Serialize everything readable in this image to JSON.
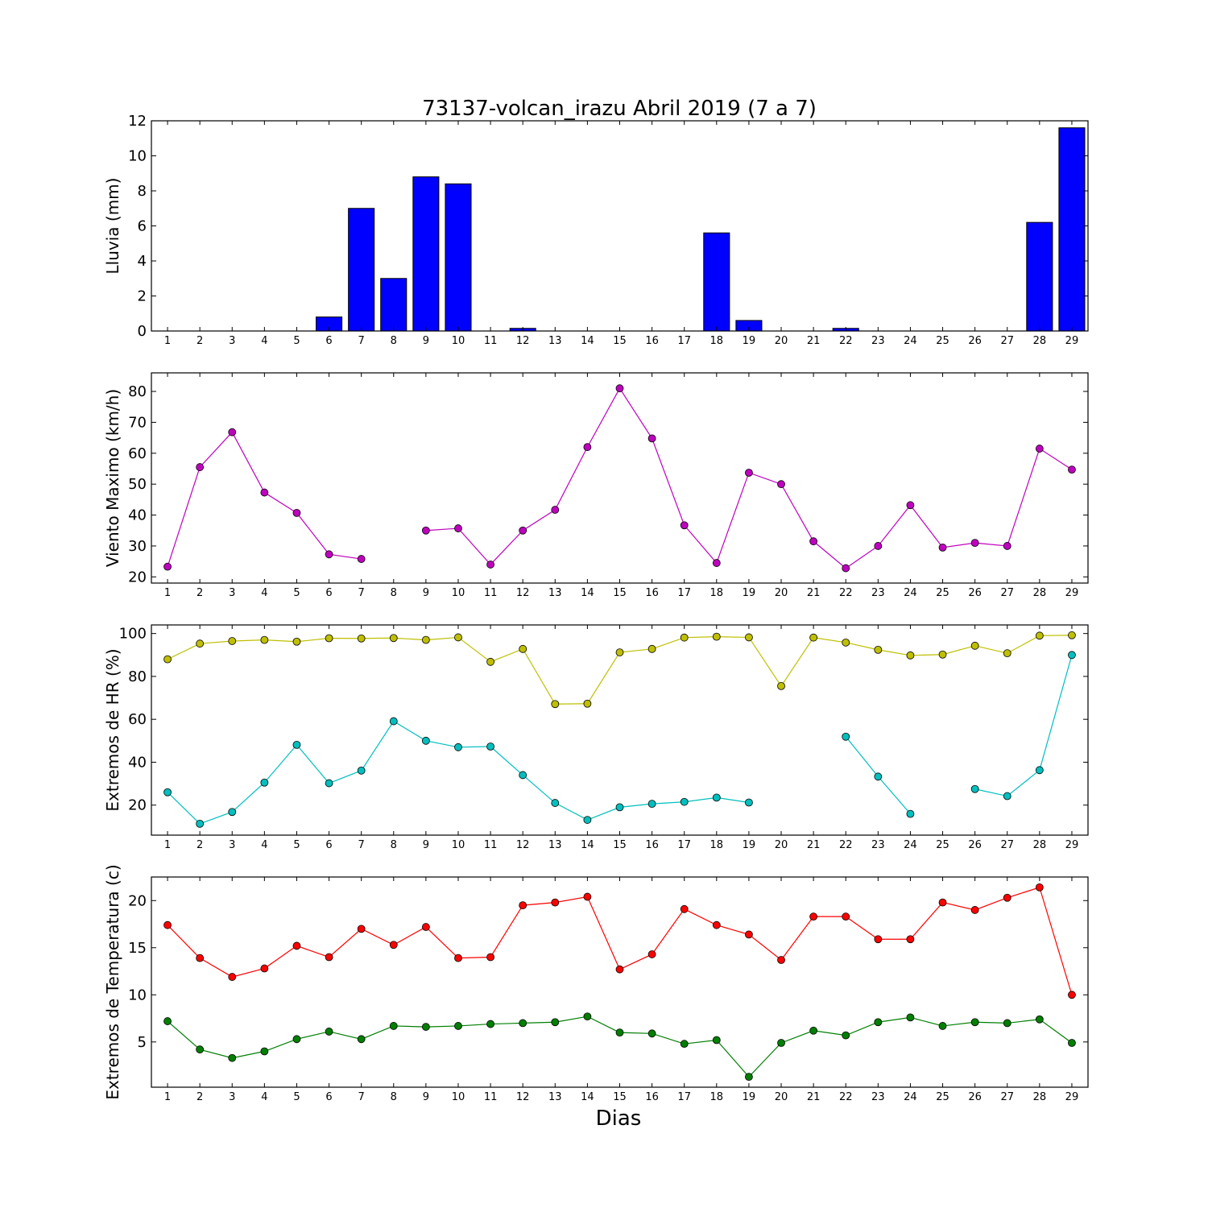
{
  "figure": {
    "title": "73137-volcan_irazu Abril 2019  (7 a 7)",
    "xlabel": "Dias"
  },
  "chart_data": [
    {
      "type": "bar",
      "ylabel": "Lluvia (mm)",
      "ylim": [
        0,
        12
      ],
      "yticks": [
        0,
        2,
        4,
        6,
        8,
        10,
        12
      ],
      "categories": [
        1,
        2,
        3,
        4,
        5,
        6,
        7,
        8,
        9,
        10,
        11,
        12,
        13,
        14,
        15,
        16,
        17,
        18,
        19,
        20,
        21,
        22,
        23,
        24,
        25,
        26,
        27,
        28,
        29
      ],
      "series": [
        {
          "color": "#0000ff",
          "values": [
            0,
            0,
            0,
            0,
            0,
            0.8,
            7.0,
            3.0,
            8.8,
            8.4,
            0,
            0.15,
            0,
            0,
            0,
            0,
            0,
            5.6,
            0.6,
            0,
            0,
            0.15,
            0,
            0,
            0,
            0,
            0,
            6.2,
            11.6
          ]
        }
      ]
    },
    {
      "type": "line",
      "ylabel": "Viento Maximo (km/h)",
      "ylim": [
        18,
        86
      ],
      "yticks": [
        20,
        30,
        40,
        50,
        60,
        70,
        80
      ],
      "categories": [
        1,
        2,
        3,
        4,
        5,
        6,
        7,
        8,
        9,
        10,
        11,
        12,
        13,
        14,
        15,
        16,
        17,
        18,
        19,
        20,
        21,
        22,
        23,
        24,
        25,
        26,
        27,
        28,
        29
      ],
      "series": [
        {
          "color": "#bf00bf",
          "values": [
            23.3,
            55.5,
            66.8,
            47.3,
            40.7,
            27.3,
            25.8,
            null,
            35.0,
            35.7,
            24.0,
            35.0,
            41.7,
            62.0,
            81.0,
            64.8,
            36.7,
            24.5,
            53.7,
            50.0,
            31.5,
            22.8,
            30.0,
            43.2,
            29.5,
            31.0,
            30.0,
            61.5,
            54.7
          ]
        }
      ]
    },
    {
      "type": "line",
      "ylabel": "Extremos de HR (%)",
      "ylim": [
        6,
        104
      ],
      "yticks": [
        20,
        40,
        60,
        80,
        100
      ],
      "categories": [
        1,
        2,
        3,
        4,
        5,
        6,
        7,
        8,
        9,
        10,
        11,
        12,
        13,
        14,
        15,
        16,
        17,
        18,
        19,
        20,
        21,
        22,
        23,
        24,
        25,
        26,
        27,
        28,
        29
      ],
      "series": [
        {
          "color": "#bfbf00",
          "values": [
            88,
            95.3,
            96.5,
            97,
            96.2,
            97.8,
            97.7,
            97.9,
            97,
            98.2,
            86.8,
            92.8,
            67.1,
            67.3,
            91.2,
            92.8,
            98.1,
            98.5,
            98.2,
            75.5,
            98.1,
            95.8,
            92.4,
            89.8,
            90.2,
            94.3,
            90.8,
            99.0,
            99.2
          ]
        },
        {
          "color": "#00bfbf",
          "values": [
            26,
            11.3,
            16.8,
            30.5,
            48.1,
            30.2,
            36.1,
            59.1,
            50,
            47,
            47.3,
            34,
            21,
            13.1,
            19,
            20.6,
            21.5,
            23.5,
            21.2,
            null,
            null,
            51.9,
            33.3,
            15.9,
            null,
            27.5,
            24.2,
            36.3,
            90
          ]
        }
      ]
    },
    {
      "type": "line",
      "ylabel": "Extremos de Temperatura (c)",
      "ylim": [
        0.2,
        22.5
      ],
      "yticks": [
        5,
        10,
        15,
        20
      ],
      "categories": [
        1,
        2,
        3,
        4,
        5,
        6,
        7,
        8,
        9,
        10,
        11,
        12,
        13,
        14,
        15,
        16,
        17,
        18,
        19,
        20,
        21,
        22,
        23,
        24,
        25,
        26,
        27,
        28,
        29
      ],
      "series": [
        {
          "color": "#ff0000",
          "values": [
            17.4,
            13.9,
            11.9,
            12.8,
            15.2,
            14.0,
            17.0,
            15.3,
            17.2,
            13.9,
            14.0,
            19.5,
            19.8,
            20.4,
            12.7,
            14.3,
            19.1,
            17.4,
            16.4,
            13.7,
            18.3,
            18.3,
            15.9,
            15.9,
            19.8,
            19.0,
            20.3,
            21.4,
            10.0
          ]
        },
        {
          "color": "#007f00",
          "values": [
            7.2,
            4.2,
            3.3,
            4.0,
            5.3,
            6.1,
            5.3,
            6.7,
            6.6,
            6.7,
            6.9,
            7.0,
            7.1,
            7.7,
            6.0,
            5.9,
            4.8,
            5.2,
            1.3,
            4.9,
            6.2,
            5.7,
            7.1,
            7.6,
            6.7,
            7.1,
            7.0,
            7.4,
            4.9
          ]
        }
      ]
    }
  ]
}
